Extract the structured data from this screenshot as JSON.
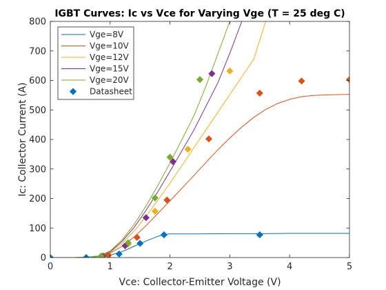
{
  "chart_data": {
    "type": "line",
    "title": "IGBT Curves: Ic vs Vce for Varying Vge  (T = 25 deg C)",
    "xlabel": "Vce: Collector-Emitter Voltage (V)",
    "ylabel": "Ic: Collector Current (A)",
    "xlim": [
      0,
      5
    ],
    "ylim": [
      0,
      800
    ],
    "xticks": [
      0,
      1,
      2,
      3,
      4,
      5
    ],
    "yticks": [
      0,
      100,
      200,
      300,
      400,
      500,
      600,
      700,
      800
    ],
    "grid": false,
    "legend_position": "top-left",
    "series": [
      {
        "name": "Vge=8V",
        "color": "#0072BD",
        "x": [
          0,
          0.2,
          0.4,
          0.6,
          0.8,
          1.0,
          1.2,
          1.4,
          1.6,
          1.8,
          1.9,
          2.0,
          2.5,
          3.0,
          3.5,
          4.0,
          4.5,
          5.0
        ],
        "y": [
          0,
          0,
          0,
          1,
          3,
          8,
          20,
          38,
          56,
          72,
          78,
          80,
          80,
          81,
          81,
          82,
          82,
          82
        ]
      },
      {
        "name": "Vge=10V",
        "color": "#D95319",
        "x": [
          0,
          0.2,
          0.4,
          0.6,
          0.8,
          1.0,
          1.2,
          1.4,
          1.6,
          1.8,
          2.0,
          2.2,
          2.4,
          2.6,
          2.8,
          3.0,
          3.2,
          3.4,
          3.6,
          3.8,
          4.0,
          4.2,
          4.4,
          4.6,
          4.8,
          5.0
        ],
        "y": [
          0,
          0,
          0,
          1,
          5,
          15,
          38,
          70,
          108,
          150,
          192,
          235,
          278,
          322,
          365,
          405,
          442,
          475,
          502,
          522,
          536,
          545,
          549,
          551,
          552,
          553
        ]
      },
      {
        "name": "Vge=12V",
        "color": "#EDB120",
        "x": [
          0,
          0.2,
          0.4,
          0.6,
          0.8,
          1.0,
          1.2,
          1.4,
          1.6,
          1.8,
          2.0,
          2.2,
          2.4,
          2.6,
          2.8,
          3.0,
          3.2,
          3.4,
          3.6
        ],
        "y": [
          0,
          0,
          0,
          1,
          5,
          18,
          48,
          90,
          140,
          195,
          252,
          312,
          372,
          432,
          492,
          552,
          612,
          672,
          800
        ]
      },
      {
        "name": "Vge=15V",
        "color": "#7E2F8E",
        "x": [
          0,
          0.2,
          0.4,
          0.6,
          0.8,
          1.0,
          1.2,
          1.4,
          1.6,
          1.8,
          2.0,
          2.2,
          2.4,
          2.6,
          2.8,
          3.0,
          3.2
        ],
        "y": [
          0,
          0,
          0,
          1,
          5,
          20,
          55,
          102,
          160,
          224,
          292,
          362,
          432,
          512,
          592,
          692,
          800
        ]
      },
      {
        "name": "Vge=20V",
        "color": "#77AC30",
        "x": [
          0,
          0.2,
          0.4,
          0.6,
          0.8,
          1.0,
          1.2,
          1.4,
          1.6,
          1.8,
          2.0,
          2.2,
          2.4,
          2.6,
          2.8,
          3.0
        ],
        "y": [
          0,
          0,
          0,
          1,
          5,
          22,
          60,
          112,
          175,
          245,
          320,
          400,
          480,
          580,
          690,
          800
        ]
      }
    ],
    "datasheet": {
      "name": "Datasheet",
      "legend_color": "#0072BD",
      "groups": [
        {
          "color": "#0072BD",
          "points": [
            [
              0,
              0
            ],
            [
              0.6,
              0
            ],
            [
              1.15,
              12
            ],
            [
              1.5,
              48
            ],
            [
              1.9,
              77
            ],
            [
              3.5,
              77
            ]
          ]
        },
        {
          "color": "#D95319",
          "points": [
            [
              0.97,
              8
            ],
            [
              1.45,
              68
            ],
            [
              1.95,
              195
            ],
            [
              2.65,
              402
            ],
            [
              3.5,
              557
            ],
            [
              4.2,
              598
            ],
            [
              5.0,
              603
            ]
          ]
        },
        {
          "color": "#EDB120",
          "points": [
            [
              0.85,
              3
            ],
            [
              1.3,
              45
            ],
            [
              1.75,
              157
            ],
            [
              2.3,
              367
            ],
            [
              3.0,
              632
            ]
          ]
        },
        {
          "color": "#7E2F8E",
          "points": [
            [
              0.88,
              5
            ],
            [
              1.25,
              40
            ],
            [
              1.6,
              135
            ],
            [
              2.05,
              325
            ],
            [
              2.7,
              623
            ]
          ]
        },
        {
          "color": "#77AC30",
          "points": [
            [
              0.85,
              5
            ],
            [
              1.3,
              50
            ],
            [
              1.75,
              202
            ],
            [
              2.0,
              340
            ],
            [
              2.5,
              603
            ]
          ]
        }
      ]
    }
  }
}
